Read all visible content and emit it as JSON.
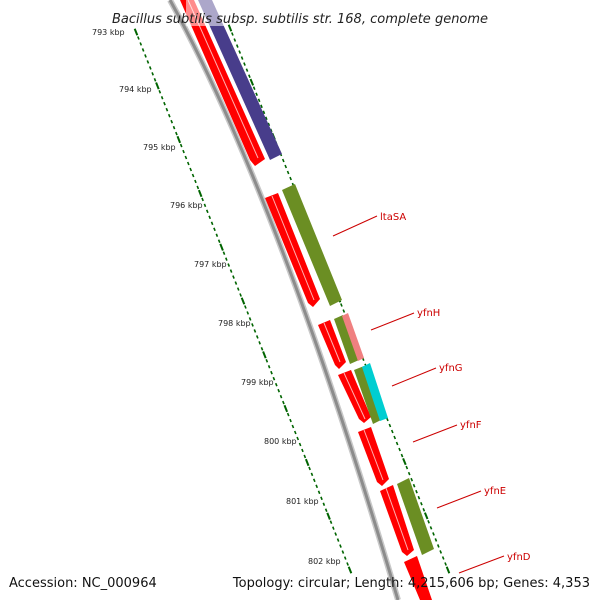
{
  "title": "Bacillus subtilis subsp. subtilis str. 168, complete genome",
  "footer": {
    "accession": "Accession: NC_000964",
    "summary": "Topology: circular; Length: 4,215,606 bp; Genes: 4,353"
  },
  "ruler": {
    "unit": "kbp",
    "labels": [
      "793 kbp",
      "794 kbp",
      "795 kbp",
      "796 kbp",
      "797 kbp",
      "798 kbp",
      "799 kbp",
      "800 kbp",
      "801 kbp",
      "802 kbp"
    ]
  },
  "gene_labels": [
    "ltaSA",
    "yfnH",
    "yfnG",
    "yfnF",
    "yfnE",
    "yfnD"
  ],
  "colors": {
    "cds": "#ff0000",
    "cog_green": "#6b8e23",
    "cog_purple": "#483d8b",
    "cog_pink": "#f08080",
    "cog_cyan": "#00ced1",
    "backbone": "#999999",
    "tick": "#006400",
    "label": "#cc0000"
  }
}
